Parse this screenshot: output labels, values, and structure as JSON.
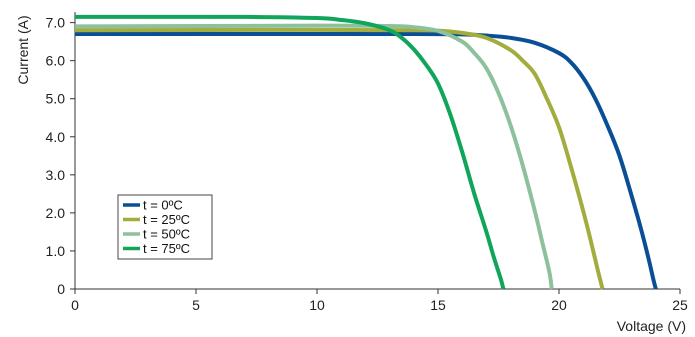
{
  "chart_data": {
    "type": "line",
    "title": "",
    "xlabel": "Voltage (V)",
    "ylabel": "Current (A)",
    "xlim": [
      0,
      25
    ],
    "ylim": [
      0,
      7.2
    ],
    "xticks": [
      0,
      5,
      10,
      15,
      20,
      25
    ],
    "xtick_labels": [
      "0",
      "5",
      "10",
      "15",
      "20",
      "25"
    ],
    "yticks": [
      0,
      1,
      2,
      3,
      4,
      5,
      6,
      7
    ],
    "ytick_labels": [
      "0",
      "1.0",
      "2.0",
      "3.0",
      "4.0",
      "5.0",
      "6.0",
      "7.0"
    ],
    "grid": false,
    "legend_position": "bottom-left",
    "series": [
      {
        "name": "t = 0ºC",
        "color": "#0a4f95",
        "x": [
          0,
          10,
          14,
          16,
          17,
          18,
          19,
          20,
          20.5,
          21,
          21.5,
          22,
          22.5,
          23,
          23.4,
          23.7,
          23.9,
          24.0
        ],
        "y": [
          6.7,
          6.7,
          6.7,
          6.69,
          6.66,
          6.6,
          6.47,
          6.2,
          5.95,
          5.55,
          5.0,
          4.3,
          3.5,
          2.45,
          1.55,
          0.8,
          0.25,
          0
        ]
      },
      {
        "name": "t = 25ºC",
        "color": "#a3ad3d",
        "x": [
          0,
          10,
          14,
          15,
          16,
          17,
          18,
          18.5,
          19,
          19.5,
          20,
          20.5,
          21,
          21.3,
          21.6,
          21.8
        ],
        "y": [
          6.8,
          6.81,
          6.8,
          6.79,
          6.73,
          6.6,
          6.28,
          6.0,
          5.65,
          5.0,
          4.25,
          3.2,
          2.05,
          1.3,
          0.5,
          0
        ]
      },
      {
        "name": "t = 50ºC",
        "color": "#8cc19c",
        "x": [
          0,
          10,
          13,
          14,
          15,
          16,
          16.5,
          17,
          17.5,
          18,
          18.5,
          19,
          19.3,
          19.6,
          19.7
        ],
        "y": [
          6.9,
          6.92,
          6.91,
          6.88,
          6.78,
          6.5,
          6.2,
          5.8,
          5.15,
          4.3,
          3.25,
          2.05,
          1.25,
          0.45,
          0
        ]
      },
      {
        "name": "t = 75ºC",
        "color": "#10a55a",
        "x": [
          0,
          7,
          10,
          11,
          12,
          13,
          13.5,
          14,
          14.5,
          15,
          15.5,
          16,
          16.5,
          17,
          17.3,
          17.6,
          17.7
        ],
        "y": [
          7.15,
          7.15,
          7.12,
          7.07,
          6.98,
          6.8,
          6.6,
          6.3,
          5.9,
          5.4,
          4.6,
          3.6,
          2.5,
          1.5,
          0.85,
          0.25,
          0
        ]
      }
    ]
  }
}
